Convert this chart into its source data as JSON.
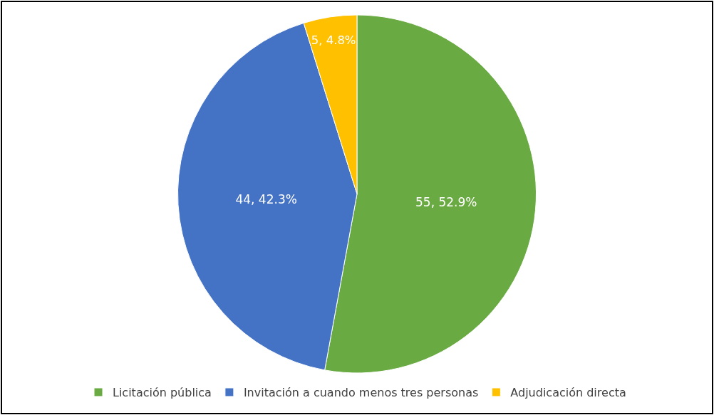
{
  "chart_data": {
    "type": "pie",
    "categories": [
      "Licitación pública",
      "Invitación a cuando menos tres personas",
      "Adjudicación directa"
    ],
    "values": [
      55,
      44,
      5
    ],
    "colors": [
      "#6aaa43",
      "#4472c4",
      "#ffc000"
    ],
    "value_labels": [
      "55, 52.9%",
      "44, 42.3%",
      "5, 4.8%"
    ],
    "legend": "bottom"
  }
}
